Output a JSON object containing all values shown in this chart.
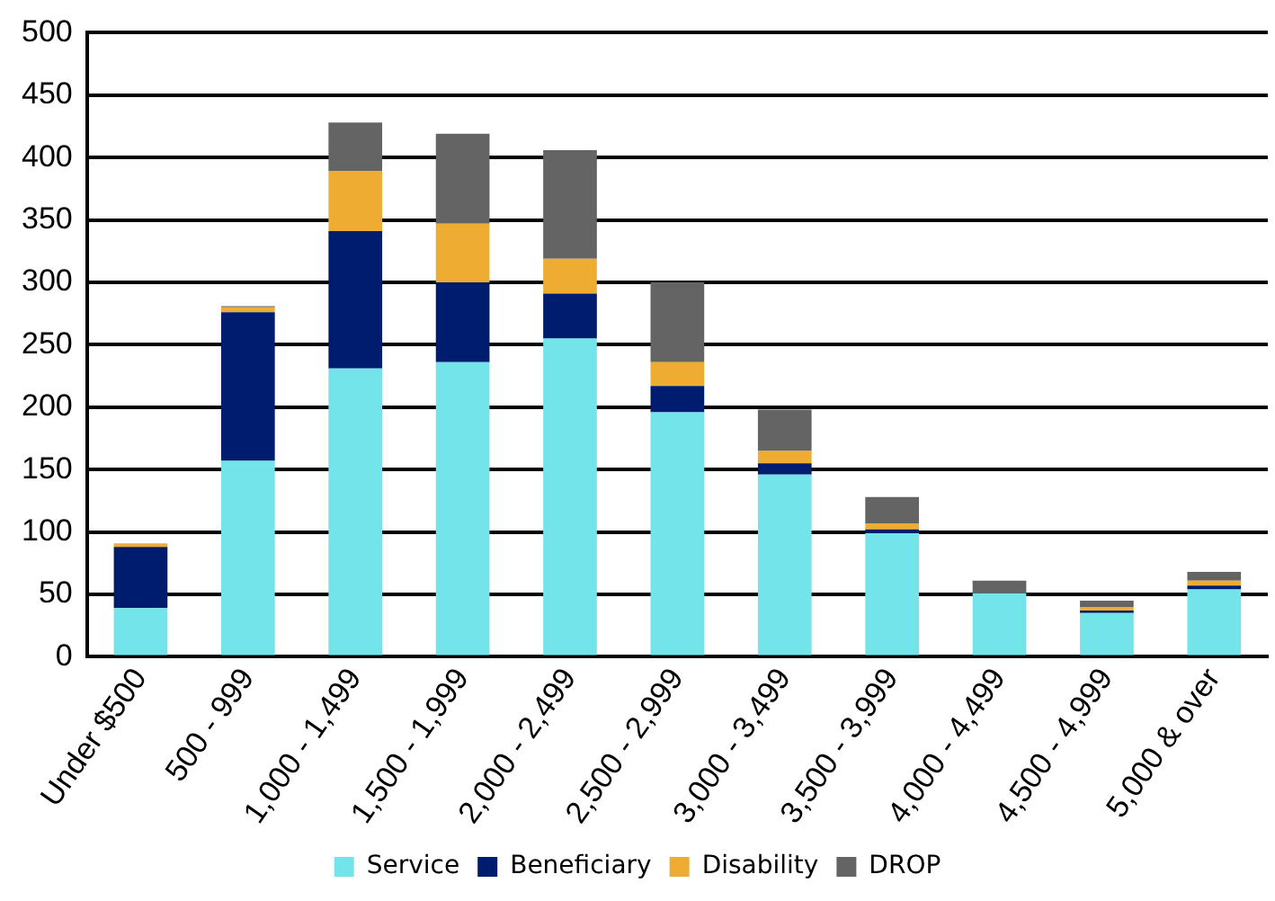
{
  "chart_data": {
    "type": "bar",
    "stacked": true,
    "categories": [
      "Under $500",
      "500 - 999",
      "1,000 - 1,499",
      "1,500 - 1,999",
      "2,000 - 2,499",
      "2,500 - 2,999",
      "3,000 - 3,499",
      "3,500 - 3,999",
      "4,000 - 4,499",
      "4,500 - 4,999",
      "5,000 & over"
    ],
    "series": [
      {
        "name": "Service",
        "color": "#73e5ea",
        "values": [
          39,
          157,
          231,
          236,
          255,
          196,
          146,
          99,
          51,
          35,
          54
        ]
      },
      {
        "name": "Beneficiary",
        "color": "#001c6e",
        "values": [
          49,
          119,
          110,
          64,
          36,
          21,
          9,
          3,
          0,
          2,
          3
        ]
      },
      {
        "name": "Disability",
        "color": "#eead32",
        "values": [
          3,
          4,
          48,
          47,
          28,
          19,
          10,
          5,
          0,
          3,
          4
        ]
      },
      {
        "name": "DROP",
        "color": "#646464",
        "values": [
          0,
          1,
          39,
          72,
          87,
          64,
          33,
          21,
          10,
          5,
          7
        ]
      }
    ],
    "ylim": [
      0,
      500
    ],
    "yticks": [
      0,
      50,
      100,
      150,
      200,
      250,
      300,
      350,
      400,
      450,
      500
    ],
    "grid": "y",
    "legend": "bottom"
  }
}
